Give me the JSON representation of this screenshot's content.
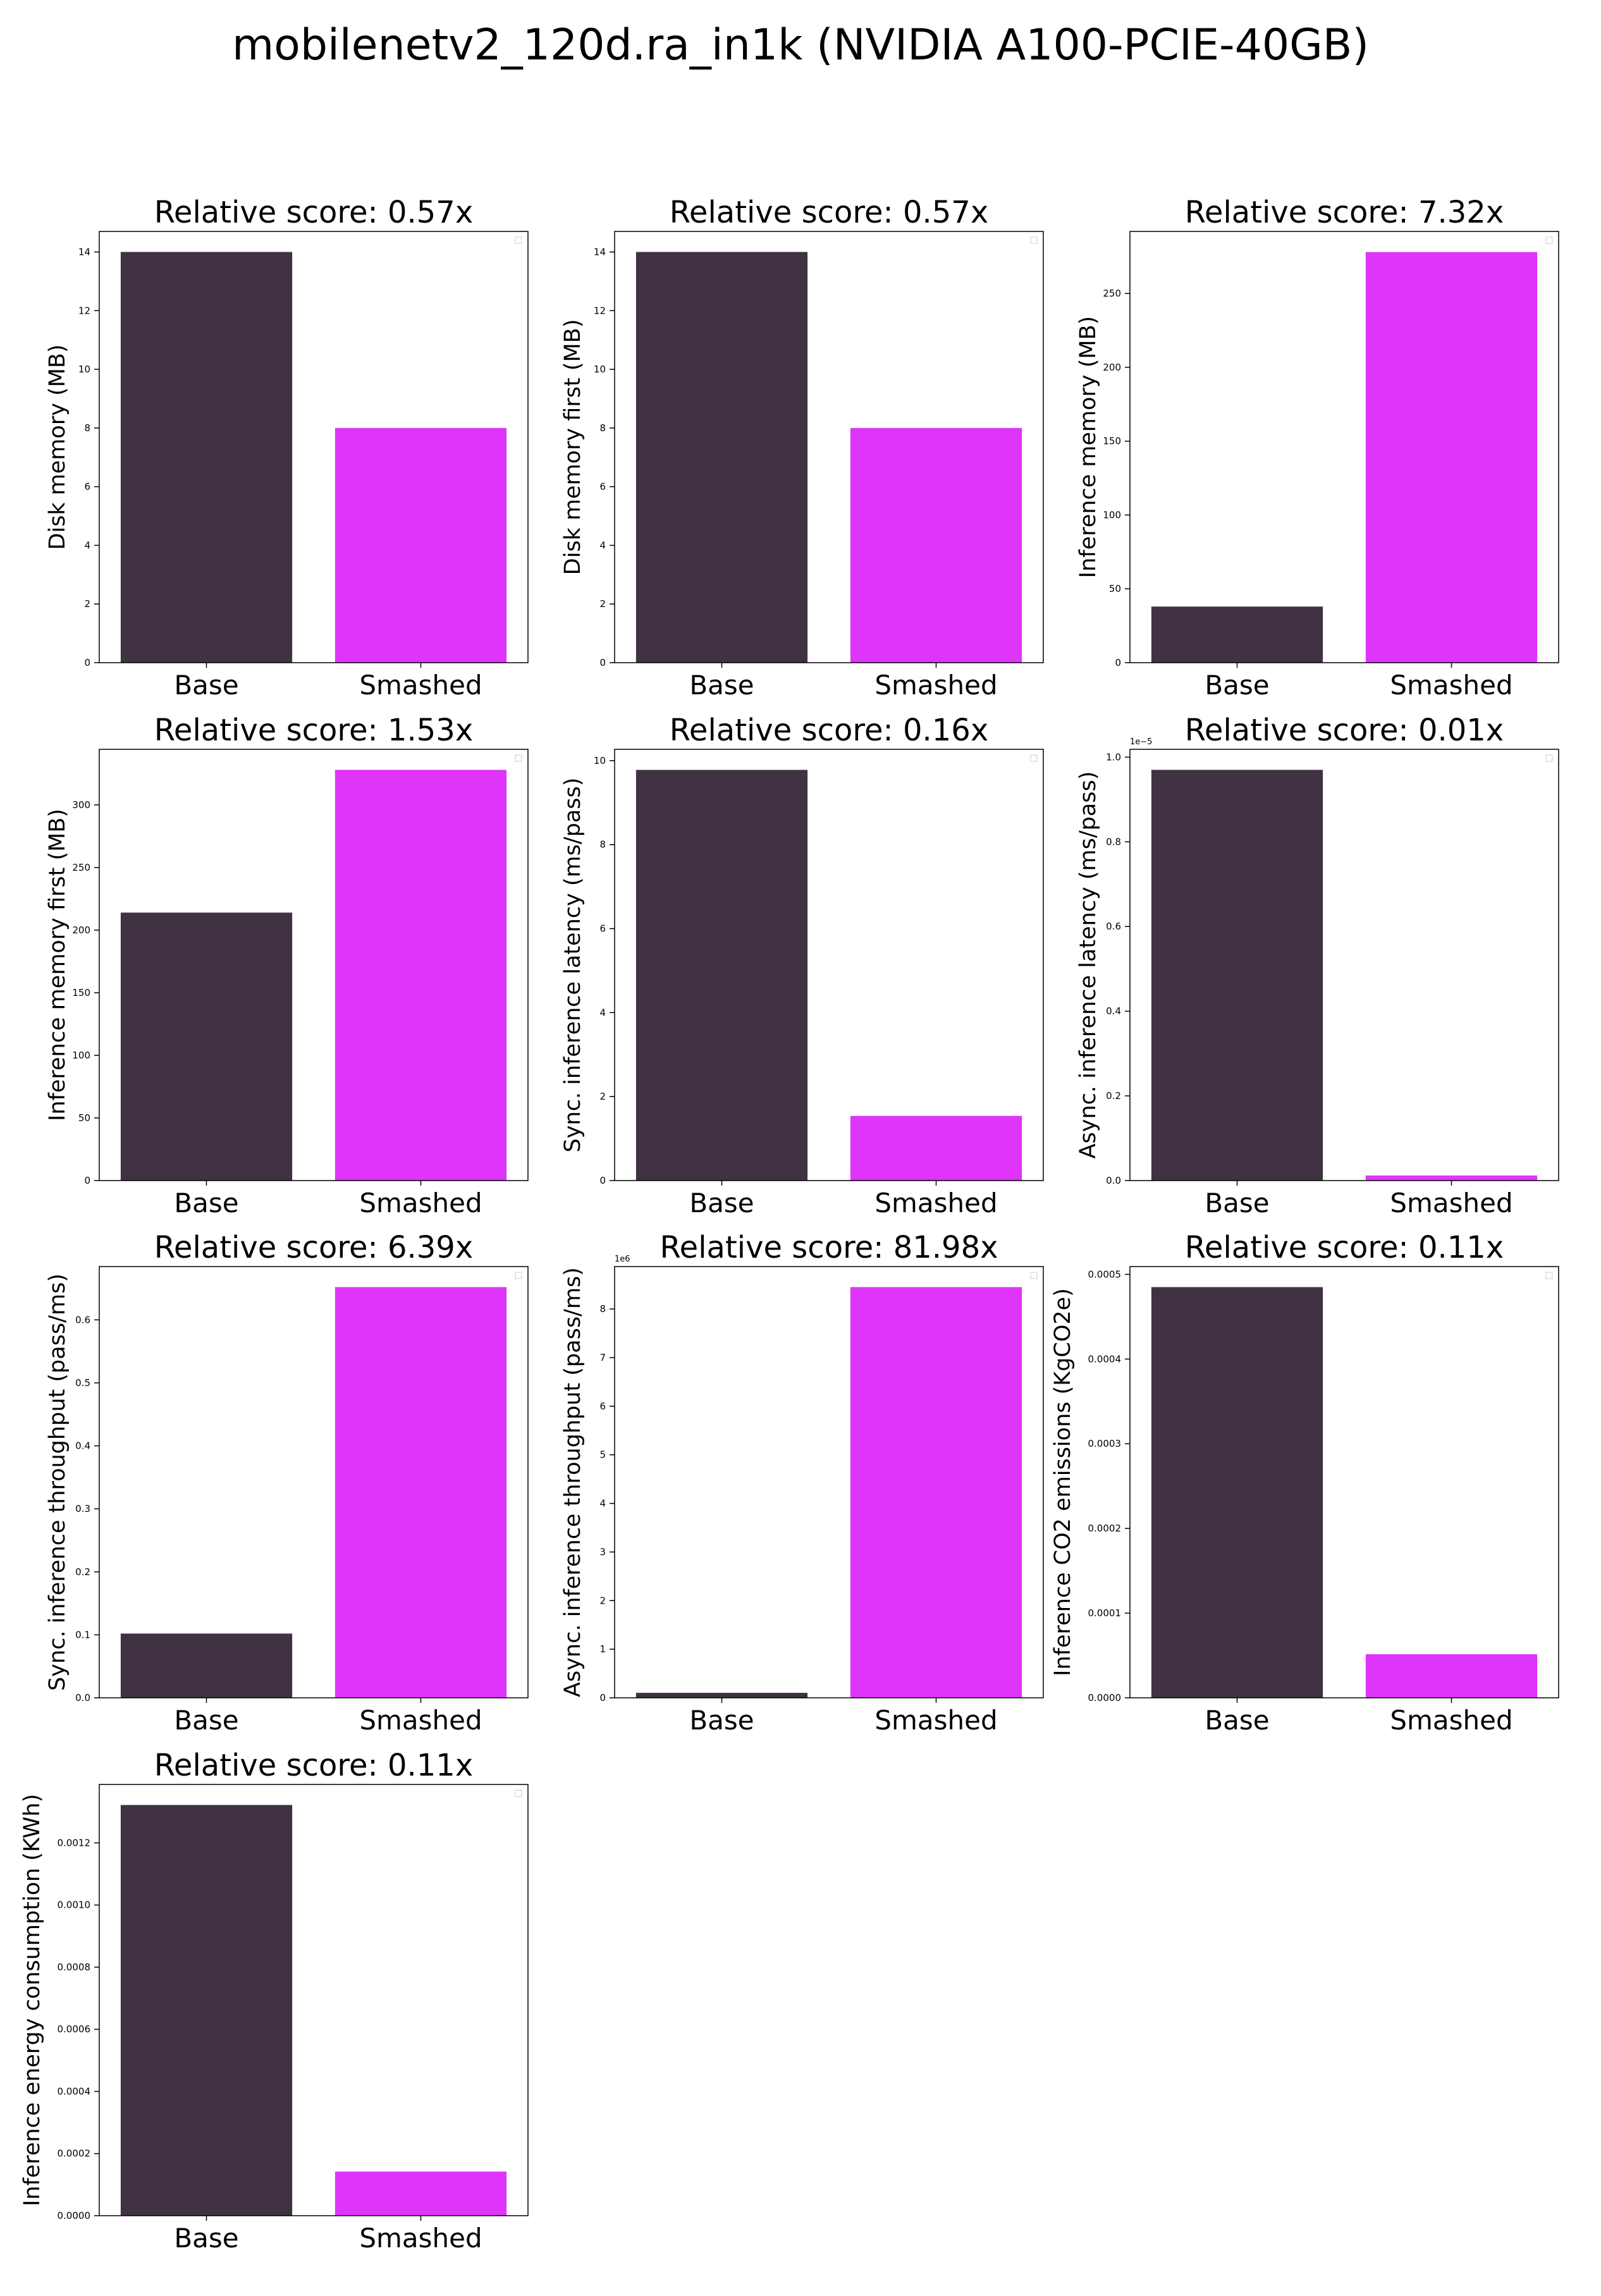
{
  "title": "mobilenetv2_120d.ra_in1k (NVIDIA A100-PCIE-40GB)",
  "colors": {
    "base": "#403242",
    "smashed": "#DF34FA"
  },
  "chart_data": [
    {
      "type": "bar",
      "title": "Relative score: 0.57x",
      "ylabel": "Disk memory (MB)",
      "categories": [
        "Base",
        "Smashed"
      ],
      "values": [
        14.0,
        8.0
      ],
      "ylim": [
        0,
        14.7
      ],
      "yticks": [
        0,
        2,
        4,
        6,
        8,
        10,
        12,
        14
      ],
      "ytick_labels": [
        "0",
        "2",
        "4",
        "6",
        "8",
        "10",
        "12",
        "14"
      ],
      "offset_text": "",
      "legend": "top-right (empty)"
    },
    {
      "type": "bar",
      "title": "Relative score: 0.57x",
      "ylabel": "Disk memory first (MB)",
      "categories": [
        "Base",
        "Smashed"
      ],
      "values": [
        14.0,
        8.0
      ],
      "ylim": [
        0,
        14.7
      ],
      "yticks": [
        0,
        2,
        4,
        6,
        8,
        10,
        12,
        14
      ],
      "ytick_labels": [
        "0",
        "2",
        "4",
        "6",
        "8",
        "10",
        "12",
        "14"
      ],
      "offset_text": "",
      "legend": "top-right (empty)"
    },
    {
      "type": "bar",
      "title": "Relative score: 7.32x",
      "ylabel": "Inference memory (MB)",
      "categories": [
        "Base",
        "Smashed"
      ],
      "values": [
        38,
        278
      ],
      "ylim": [
        0,
        292
      ],
      "yticks": [
        0,
        50,
        100,
        150,
        200,
        250
      ],
      "ytick_labels": [
        "0",
        "50",
        "100",
        "150",
        "200",
        "250"
      ],
      "offset_text": "",
      "legend": "top-right (empty)"
    },
    {
      "type": "bar",
      "title": "Relative score: 1.53x",
      "ylabel": "Inference memory first (MB)",
      "categories": [
        "Base",
        "Smashed"
      ],
      "values": [
        214,
        328
      ],
      "ylim": [
        0,
        344.4
      ],
      "yticks": [
        0,
        50,
        100,
        150,
        200,
        250,
        300
      ],
      "ytick_labels": [
        "0",
        "50",
        "100",
        "150",
        "200",
        "250",
        "300"
      ],
      "offset_text": "",
      "legend": "top-right (empty)"
    },
    {
      "type": "bar",
      "title": "Relative score: 0.16x",
      "ylabel": "Sync. inference latency (ms/pass)",
      "categories": [
        "Base",
        "Smashed"
      ],
      "values": [
        9.78,
        1.54
      ],
      "ylim": [
        0,
        10.27
      ],
      "yticks": [
        0,
        2,
        4,
        6,
        8,
        10
      ],
      "ytick_labels": [
        "0",
        "2",
        "4",
        "6",
        "8",
        "10"
      ],
      "offset_text": "",
      "legend": "top-right (empty)"
    },
    {
      "type": "bar",
      "title": "Relative score: 0.01x",
      "ylabel": "Async. inference latency (ms/pass)",
      "categories": [
        "Base",
        "Smashed"
      ],
      "values": [
        9.7e-06,
        1.2e-07
      ],
      "ylim": [
        0,
        1.0185e-05
      ],
      "yticks": [
        0,
        2e-06,
        4e-06,
        6e-06,
        8e-06,
        1e-05
      ],
      "ytick_labels": [
        "0.0",
        "0.2",
        "0.4",
        "0.6",
        "0.8",
        "1.0"
      ],
      "offset_text": "1e−5",
      "legend": "top-right (empty)"
    },
    {
      "type": "bar",
      "title": "Relative score: 6.39x",
      "ylabel": "Sync. inference throughput (pass/ms)",
      "categories": [
        "Base",
        "Smashed"
      ],
      "values": [
        0.102,
        0.652
      ],
      "ylim": [
        0,
        0.6846
      ],
      "yticks": [
        0,
        0.1,
        0.2,
        0.3,
        0.4,
        0.5,
        0.6
      ],
      "ytick_labels": [
        "0.0",
        "0.1",
        "0.2",
        "0.3",
        "0.4",
        "0.5",
        "0.6"
      ],
      "offset_text": "",
      "legend": "top-right (empty)"
    },
    {
      "type": "bar",
      "title": "Relative score: 81.98x",
      "ylabel": "Async. inference throughput (pass/ms)",
      "categories": [
        "Base",
        "Smashed"
      ],
      "values": [
        103000,
        8450000
      ],
      "ylim": [
        0,
        8872500
      ],
      "yticks": [
        0,
        1000000,
        2000000,
        3000000,
        4000000,
        5000000,
        6000000,
        7000000,
        8000000
      ],
      "ytick_labels": [
        "0",
        "1",
        "2",
        "3",
        "4",
        "5",
        "6",
        "7",
        "8"
      ],
      "offset_text": "1e6",
      "legend": "top-right (empty)"
    },
    {
      "type": "bar",
      "title": "Relative score: 0.11x",
      "ylabel": "Inference CO2 emissions (KgCO2e)",
      "categories": [
        "Base",
        "Smashed"
      ],
      "values": [
        0.000485,
        5.15e-05
      ],
      "ylim": [
        0,
        0.00050925
      ],
      "yticks": [
        0,
        0.0001,
        0.0002,
        0.0003,
        0.0004,
        0.0005
      ],
      "ytick_labels": [
        "0.0000",
        "0.0001",
        "0.0002",
        "0.0003",
        "0.0004",
        "0.0005"
      ],
      "offset_text": "",
      "legend": "top-right (empty)"
    },
    {
      "type": "bar",
      "title": "Relative score: 0.11x",
      "ylabel": "Inference energy consumption (KWh)",
      "categories": [
        "Base",
        "Smashed"
      ],
      "values": [
        0.001322,
        0.000142
      ],
      "ylim": [
        0,
        0.0013881
      ],
      "yticks": [
        0,
        0.0002,
        0.0004,
        0.0006,
        0.0008,
        0.001,
        0.0012
      ],
      "ytick_labels": [
        "0.0000",
        "0.0002",
        "0.0004",
        "0.0006",
        "0.0008",
        "0.0010",
        "0.0012"
      ],
      "offset_text": "",
      "legend": "top-right (empty)"
    }
  ]
}
